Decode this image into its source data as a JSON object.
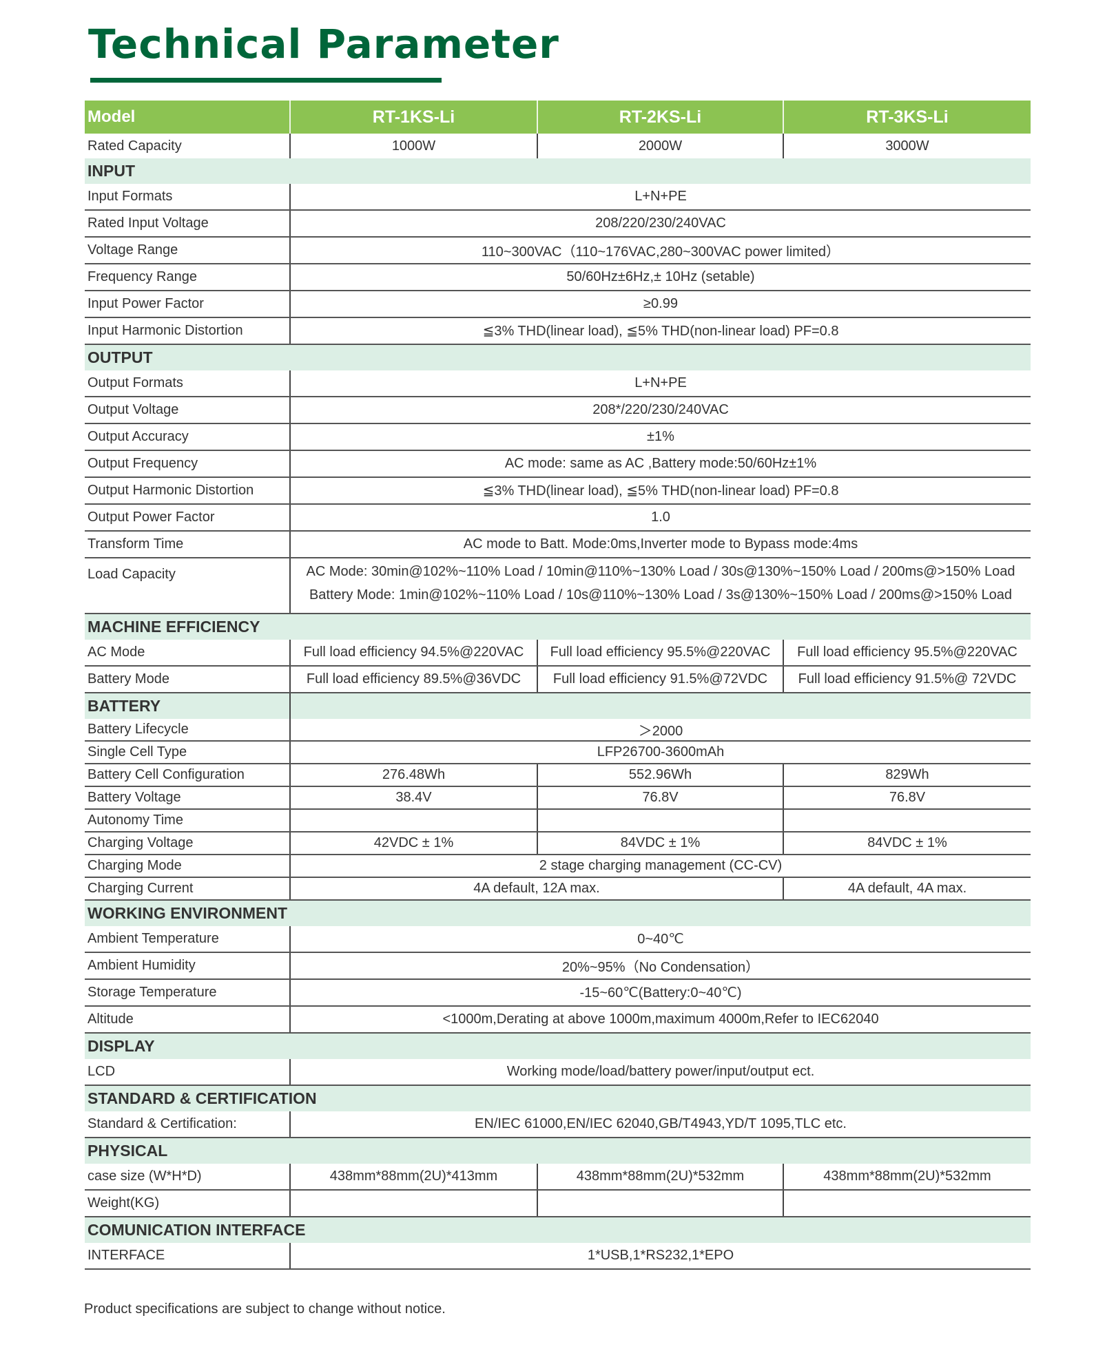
{
  "title": "Technical Parameter",
  "colors": {
    "title_green": "#00663a",
    "header_green": "#8cc352",
    "section_bg": "#dcefe5"
  },
  "header": {
    "label": "Model",
    "models": [
      "RT-1KS-Li",
      "RT-2KS-Li",
      "RT-3KS-Li"
    ]
  },
  "rated_capacity": {
    "label": "Rated Capacity",
    "values": [
      "1000W",
      "2000W",
      "3000W"
    ]
  },
  "sections": [
    {
      "title": "INPUT",
      "rows": [
        {
          "label": "Input Formats",
          "cells": [
            {
              "text": "L+N+PE",
              "span": 3
            }
          ]
        },
        {
          "label": "Rated Input Voltage",
          "cells": [
            {
              "text": "208/220/230/240VAC",
              "span": 3
            }
          ]
        },
        {
          "label": "Voltage Range",
          "cells": [
            {
              "text": "110~300VAC（110~176VAC,280~300VAC  power limited）",
              "span": 3
            }
          ]
        },
        {
          "label": "Frequency Range",
          "cells": [
            {
              "text": "50/60Hz±6Hz,± 10Hz (setable)",
              "span": 3
            }
          ]
        },
        {
          "label": "Input Power Factor",
          "cells": [
            {
              "text": "≥0.99",
              "span": 3
            }
          ]
        },
        {
          "label": "Input Harmonic Distortion",
          "cells": [
            {
              "text": "≦3% THD(linear load), ≦5% THD(non-linear load) PF=0.8",
              "span": 3
            }
          ]
        }
      ]
    },
    {
      "title": "OUTPUT",
      "rows": [
        {
          "label": "Output Formats",
          "cells": [
            {
              "text": "L+N+PE",
              "span": 3
            }
          ]
        },
        {
          "label": "Output Voltage",
          "cells": [
            {
              "text": "208*/220/230/240VAC",
              "span": 3
            }
          ]
        },
        {
          "label": "Output Accuracy",
          "cells": [
            {
              "text": "±1%",
              "span": 3
            }
          ]
        },
        {
          "label": "Output Frequency",
          "cells": [
            {
              "text": "AC mode: same as AC ,Battery mode:50/60Hz±1%",
              "span": 3
            }
          ]
        },
        {
          "label": "Output Harmonic Distortion",
          "cells": [
            {
              "text": "≦3% THD(linear load), ≦5% THD(non-linear load) PF=0.8",
              "span": 3
            }
          ]
        },
        {
          "label": "Output Power Factor",
          "cells": [
            {
              "text": "1.0",
              "span": 3
            }
          ]
        },
        {
          "label": "Transform Time",
          "cells": [
            {
              "text": "AC mode to Batt. Mode:0ms,Inverter mode to Bypass mode:4ms",
              "span": 3
            }
          ]
        },
        {
          "label": "Load Capacity",
          "tall": true,
          "cells": [
            {
              "text": "AC Mode: 30min@102%~110% Load / 10min@110%~130% Load / 30s@130%~150% Load / 200ms@>150% Load",
              "text2": "Battery Mode: 1min@102%~110% Load / 10s@110%~130% Load / 3s@130%~150% Load / 200ms@>150% Load",
              "span": 3
            }
          ]
        }
      ]
    },
    {
      "title": "MACHINE EFFICIENCY",
      "rows": [
        {
          "label": "AC  Mode",
          "cells": [
            {
              "text": "Full load efficiency 94.5%@220VAC"
            },
            {
              "text": "Full load efficiency 95.5%@220VAC"
            },
            {
              "text": "Full load efficiency 95.5%@220VAC"
            }
          ]
        },
        {
          "label": "Battery Mode",
          "cells": [
            {
              "text": "Full load efficiency 89.5%@36VDC"
            },
            {
              "text": "Full load efficiency 91.5%@72VDC"
            },
            {
              "text": "Full load efficiency 91.5%@ 72VDC"
            }
          ]
        }
      ]
    },
    {
      "title": "BATTERY",
      "split": true,
      "compact": true,
      "rows": [
        {
          "label": "Battery Lifecycle",
          "cells": [
            {
              "text": "＞2000",
              "span": 3
            }
          ]
        },
        {
          "label": "Single Cell Type",
          "cells": [
            {
              "text": "LFP26700-3600mAh",
              "span": 3
            }
          ]
        },
        {
          "label": "Battery Cell Configuration",
          "cells": [
            {
              "text": "276.48Wh"
            },
            {
              "text": "552.96Wh"
            },
            {
              "text": "829Wh"
            }
          ]
        },
        {
          "label": "Battery Voltage",
          "cells": [
            {
              "text": "38.4V"
            },
            {
              "text": "76.8V"
            },
            {
              "text": "76.8V"
            }
          ]
        },
        {
          "label": "Autonomy Time",
          "cells": [
            {
              "text": ""
            },
            {
              "text": ""
            },
            {
              "text": ""
            }
          ]
        },
        {
          "label": "Charging Voltage",
          "cells": [
            {
              "text": "42VDC ± 1%"
            },
            {
              "text": "84VDC ± 1%"
            },
            {
              "text": "84VDC ± 1%"
            }
          ]
        },
        {
          "label": "Charging Mode",
          "cells": [
            {
              "text": "2 stage charging management (CC-CV)",
              "span": 3
            }
          ]
        },
        {
          "label": "Charging Current",
          "cells": [
            {
              "text": "4A default, 12A max.",
              "span": 2
            },
            {
              "text": "4A default, 4A max."
            }
          ]
        }
      ]
    },
    {
      "title": "WORKING ENVIRONMENT",
      "rows": [
        {
          "label": "Ambient Temperature",
          "cells": [
            {
              "text": "0~40℃",
              "span": 3
            }
          ]
        },
        {
          "label": "Ambient Humidity",
          "cells": [
            {
              "text": "20%~95%（No Condensation）",
              "span": 3
            }
          ]
        },
        {
          "label": "Storage Temperature",
          "cells": [
            {
              "text": "-15~60℃(Battery:0~40℃)",
              "span": 3
            }
          ]
        },
        {
          "label": "Altitude",
          "cells": [
            {
              "text": "<1000m,Derating at above 1000m,maximum 4000m,Refer to IEC62040",
              "span": 3
            }
          ]
        }
      ]
    },
    {
      "title": "DISPLAY",
      "rows": [
        {
          "label": "LCD",
          "cells": [
            {
              "text": "Working mode/load/battery power/input/output ect.",
              "span": 3
            }
          ]
        }
      ]
    },
    {
      "title": "STANDARD & CERTIFICATION",
      "rows": [
        {
          "label": "Standard & Certification:",
          "cells": [
            {
              "text": "EN/IEC 61000,EN/IEC 62040,GB/T4943,YD/T 1095,TLC etc.",
              "span": 3
            }
          ]
        }
      ]
    },
    {
      "title": "PHYSICAL",
      "rows": [
        {
          "label": "case size (W*H*D)",
          "cells": [
            {
              "text": "438mm*88mm(2U)*413mm"
            },
            {
              "text": "438mm*88mm(2U)*532mm"
            },
            {
              "text": "438mm*88mm(2U)*532mm"
            }
          ]
        },
        {
          "label": "Weight(KG)",
          "cells": [
            {
              "text": ""
            },
            {
              "text": ""
            },
            {
              "text": ""
            }
          ]
        }
      ]
    },
    {
      "title": "COMUNICATION INTERFACE",
      "rows": [
        {
          "label": "INTERFACE",
          "cells": [
            {
              "text": "1*USB,1*RS232,1*EPO",
              "span": 3
            }
          ]
        }
      ]
    }
  ],
  "footer": "Product specifications are subject to change without notice."
}
